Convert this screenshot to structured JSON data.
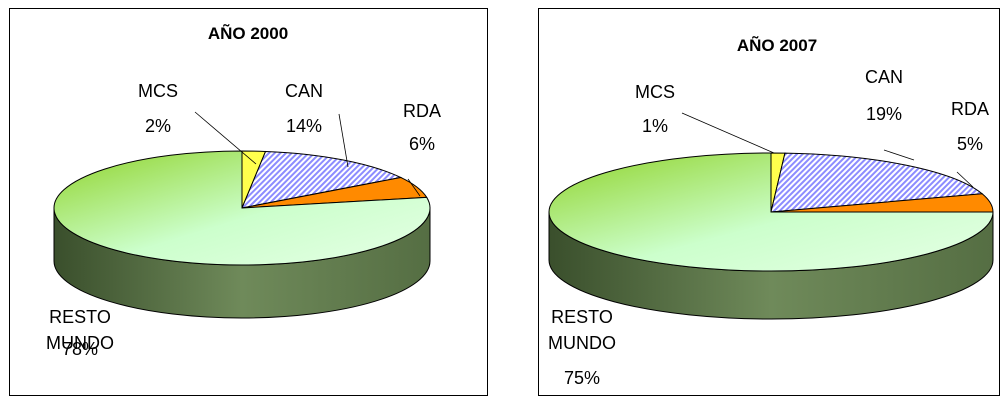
{
  "chart_data": [
    {
      "type": "pie",
      "title": "AÑO 2000",
      "categories": [
        "MCS",
        "CAN",
        "RDA",
        "RESTO MUNDO"
      ],
      "values": [
        2,
        14,
        6,
        78
      ],
      "labels": [
        {
          "name": [
            "MCS"
          ],
          "pct": "2%"
        },
        {
          "name": [
            "CAN"
          ],
          "pct": "14%"
        },
        {
          "name": [
            "RDA"
          ],
          "pct": "6%"
        },
        {
          "name": [
            "RESTO",
            "MUNDO"
          ],
          "pct": "78%"
        }
      ],
      "colors": {
        "MCS": "#ffff4d",
        "CAN": "#8c8cff",
        "RDA": "#ff8a00",
        "RESTO MUNDO": "#ccffcc"
      },
      "style": "3d-pie"
    },
    {
      "type": "pie",
      "title": "AÑO 2007",
      "categories": [
        "MCS",
        "CAN",
        "RDA",
        "RESTO MUNDO"
      ],
      "values": [
        1,
        19,
        5,
        75
      ],
      "labels": [
        {
          "name": [
            "MCS"
          ],
          "pct": "1%"
        },
        {
          "name": [
            "CAN"
          ],
          "pct": "19%"
        },
        {
          "name": [
            "RDA"
          ],
          "pct": "5%"
        },
        {
          "name": [
            "RESTO",
            "MUNDO"
          ],
          "pct": "75%"
        }
      ],
      "colors": {
        "MCS": "#ffff4d",
        "CAN": "#8c8cff",
        "RDA": "#ff8a00",
        "RESTO MUNDO": "#ccffcc"
      },
      "style": "3d-pie"
    }
  ]
}
